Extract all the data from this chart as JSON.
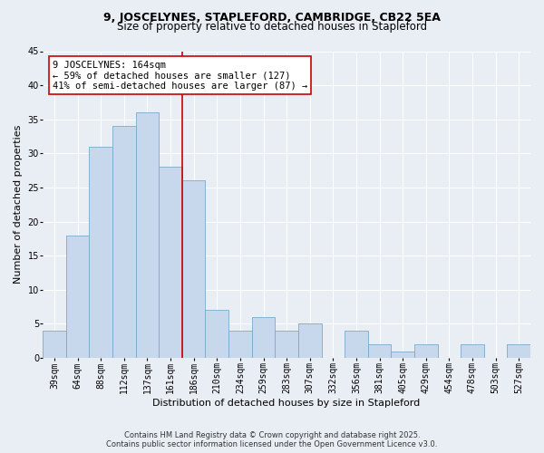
{
  "title1": "9, JOSCELYNES, STAPLEFORD, CAMBRIDGE, CB22 5EA",
  "title2": "Size of property relative to detached houses in Stapleford",
  "xlabel": "Distribution of detached houses by size in Stapleford",
  "ylabel": "Number of detached properties",
  "categories": [
    "39sqm",
    "64sqm",
    "88sqm",
    "112sqm",
    "137sqm",
    "161sqm",
    "186sqm",
    "210sqm",
    "234sqm",
    "259sqm",
    "283sqm",
    "307sqm",
    "332sqm",
    "356sqm",
    "381sqm",
    "405sqm",
    "429sqm",
    "454sqm",
    "478sqm",
    "503sqm",
    "527sqm"
  ],
  "values": [
    4,
    18,
    31,
    34,
    36,
    28,
    26,
    7,
    4,
    6,
    4,
    5,
    0,
    4,
    2,
    1,
    2,
    0,
    2,
    0,
    2
  ],
  "bar_color": "#c8d8ec",
  "bar_edge_color": "#7aaac8",
  "ylim": [
    0,
    45
  ],
  "yticks": [
    0,
    5,
    10,
    15,
    20,
    25,
    30,
    35,
    40,
    45
  ],
  "vline_color": "#cc0000",
  "annotation_title": "9 JOSCELYNES: 164sqm",
  "annotation_line1": "← 59% of detached houses are smaller (127)",
  "annotation_line2": "41% of semi-detached houses are larger (87) →",
  "annotation_box_color": "#ffffff",
  "annotation_box_edge": "#cc0000",
  "bg_color": "#e8eef4",
  "footer1": "Contains HM Land Registry data © Crown copyright and database right 2025.",
  "footer2": "Contains public sector information licensed under the Open Government Licence v3.0.",
  "title_fontsize": 9,
  "subtitle_fontsize": 8.5,
  "xlabel_fontsize": 8,
  "ylabel_fontsize": 8,
  "tick_fontsize": 7,
  "annot_fontsize": 7.5,
  "footer_fontsize": 6
}
